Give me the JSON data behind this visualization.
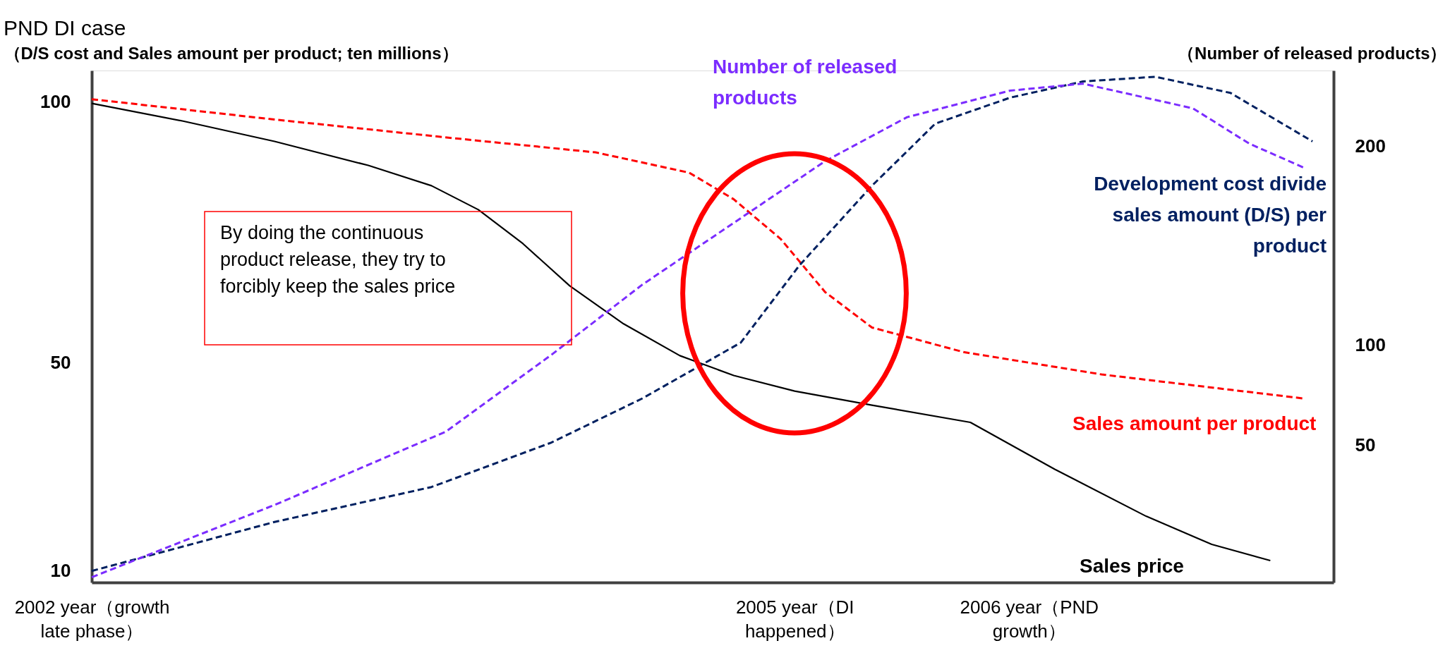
{
  "chart_data": {
    "type": "line",
    "title": "PND DI case",
    "ylabel": "（D/S cost and Sales amount per product; ten millions）",
    "y2label": "（Number of released products）",
    "xlim": [
      2002,
      2007.3
    ],
    "xticks": [
      {
        "value": 2002,
        "label": "2002 year（growth late phase）"
      },
      {
        "value": 2005,
        "label": "2005 year（DI happened）"
      },
      {
        "value": 2006,
        "label": "2006 year（PND growth）"
      }
    ],
    "ylim": [
      7.8,
      106
    ],
    "yticks": [
      10,
      50,
      100
    ],
    "y2lim": [
      -19,
      238
    ],
    "y2ticks": [
      50,
      100,
      200
    ],
    "series": [
      {
        "name": "Sales price",
        "color": "#000000",
        "line_style": "solid",
        "x": [
          2002,
          2002.39,
          2002.78,
          2003.18,
          2003.45,
          2003.65,
          2003.84,
          2004.04,
          2004.27,
          2004.51,
          2004.74,
          2005.0,
          2005.33,
          2005.75,
          2006.11,
          2006.5,
          2006.78,
          2007.03
        ],
        "values": [
          99.7,
          96.3,
          92.4,
          87.8,
          83.9,
          79.3,
          72.8,
          64.7,
          57.4,
          51.3,
          47.5,
          44.5,
          41.8,
          38.5,
          29.5,
          20.5,
          15.1,
          12.0
        ]
      },
      {
        "name": "Sales amount per product",
        "color": "#ff0000",
        "line_style": "dashed",
        "x": [
          2002,
          2002.78,
          2003.57,
          2004.15,
          2004.55,
          2004.74,
          2004.94,
          2005.13,
          2005.33,
          2005.72,
          2006.31,
          2007.17
        ],
        "values": [
          100.5,
          96.6,
          92.9,
          90.3,
          86.4,
          81.3,
          73.7,
          63.5,
          56.7,
          52.0,
          47.7,
          43.1
        ]
      },
      {
        "name": "Development cost divide sales amount (D/S) per product",
        "color": "#002060",
        "line_style": "dashed",
        "x": [
          2002,
          2002.78,
          2003.45,
          2003.96,
          2004.35,
          2004.77,
          2005.02,
          2005.33,
          2005.6,
          2005.92,
          2006.23,
          2006.54,
          2006.86,
          2007.21
        ],
        "values": [
          10.0,
          19.4,
          26.1,
          34.6,
          43.1,
          53.8,
          68.6,
          83.9,
          95.8,
          100.8,
          103.9,
          104.8,
          101.7,
          92.4
        ]
      },
      {
        "name": "Number of released products",
        "color": "#7b2cff",
        "line_style": "dashed",
        "axis": "y2",
        "x": [
          2002,
          2002.78,
          2003.51,
          2003.96,
          2004.35,
          2004.74,
          2005.13,
          2005.48,
          2005.92,
          2006.23,
          2006.7,
          2006.94,
          2007.17
        ],
        "values": [
          -16.4,
          19.9,
          56.6,
          95.1,
          130.5,
          161.5,
          192.5,
          214.6,
          227.9,
          231.4,
          219.0,
          201.3,
          189.4
        ]
      }
    ],
    "annotations": [
      "By doing the continuous product release, they try to forcibly keep the sales price"
    ]
  }
}
